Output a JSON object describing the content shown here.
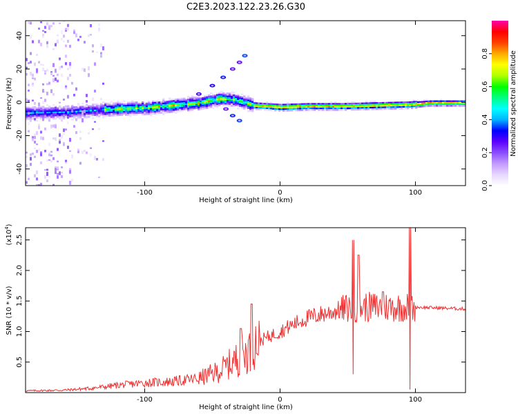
{
  "title": "C2E3.2023.122.23.26.G30",
  "chart_data": [
    {
      "type": "heatmap",
      "xlabel": "Height of straight line (km)",
      "ylabel": "Frequency (Hz)",
      "xlim": [
        -188,
        137
      ],
      "ylim": [
        -50,
        49
      ],
      "x_ticks": [
        -100,
        0,
        100
      ],
      "y_ticks": [
        -40,
        -20,
        0,
        20,
        40
      ],
      "colorbar": {
        "label": "Normalized spectral amplitude",
        "range": [
          0,
          1
        ],
        "ticks": [
          "0.0",
          "0.2",
          "0.4",
          "0.6",
          "0.8"
        ],
        "colors": [
          "#ffffff",
          "#e6d7ff",
          "#c39aff",
          "#8a4dff",
          "#5a00ff",
          "#0000ff",
          "#00b4ff",
          "#00ffff",
          "#00ff80",
          "#00ff00",
          "#b0ff00",
          "#ffff00",
          "#ffaa00",
          "#ff4000",
          "#ff0000",
          "#ff00aa"
        ]
      },
      "ridge": [
        {
          "x": -188,
          "f": -6.0
        },
        {
          "x": -160,
          "f": -5.5
        },
        {
          "x": -140,
          "f": -4.5
        },
        {
          "x": -120,
          "f": -3.5
        },
        {
          "x": -100,
          "f": -3.0
        },
        {
          "x": -80,
          "f": -1.5
        },
        {
          "x": -60,
          "f": 0.0
        },
        {
          "x": -45,
          "f": 2.5
        },
        {
          "x": -35,
          "f": 2.0
        },
        {
          "x": -25,
          "f": 0.0
        },
        {
          "x": -20,
          "f": -1.5
        },
        {
          "x": 0,
          "f": -2.5
        },
        {
          "x": 20,
          "f": -2.0
        },
        {
          "x": 45,
          "f": -2.0
        },
        {
          "x": 70,
          "f": -1.5
        },
        {
          "x": 95,
          "f": -1.0
        },
        {
          "x": 110,
          "f": 0.0
        },
        {
          "x": 137,
          "f": 0.0
        }
      ],
      "upper_branch": [
        {
          "x": -60,
          "f": 5
        },
        {
          "x": -50,
          "f": 10
        },
        {
          "x": -42,
          "f": 15
        },
        {
          "x": -35,
          "f": 20
        },
        {
          "x": -30,
          "f": 24
        },
        {
          "x": -26,
          "f": 28
        }
      ],
      "lower_branch": [
        {
          "x": -40,
          "f": -4
        },
        {
          "x": -35,
          "f": -8
        },
        {
          "x": -30,
          "f": -11
        }
      ]
    },
    {
      "type": "line",
      "xlabel": "Height of straight line (km)",
      "ylabel": "SNR (10 * v/v)",
      "scale_label": "(x10",
      "scale_exp": "4",
      "scale_close": ")",
      "xlim": [
        -188,
        137
      ],
      "ylim": [
        0,
        27000
      ],
      "x_ticks": [
        -100,
        0,
        100
      ],
      "y_ticks": [
        5000,
        10000,
        15000,
        20000,
        25000
      ],
      "y_tick_labels": [
        "0.5",
        "1.0",
        "1.5",
        "2.0",
        "2.5"
      ],
      "line_color": "#ee3030",
      "trend": [
        {
          "x": -188,
          "y": 300
        },
        {
          "x": -160,
          "y": 400
        },
        {
          "x": -140,
          "y": 700
        },
        {
          "x": -120,
          "y": 1200
        },
        {
          "x": -100,
          "y": 1600
        },
        {
          "x": -80,
          "y": 1800
        },
        {
          "x": -60,
          "y": 2300
        },
        {
          "x": -45,
          "y": 3500
        },
        {
          "x": -35,
          "y": 5000
        },
        {
          "x": -25,
          "y": 6500
        },
        {
          "x": -20,
          "y": 8000
        },
        {
          "x": -10,
          "y": 9000
        },
        {
          "x": 0,
          "y": 10000
        },
        {
          "x": 10,
          "y": 11200
        },
        {
          "x": 20,
          "y": 12200
        },
        {
          "x": 30,
          "y": 12800
        },
        {
          "x": 40,
          "y": 13300
        },
        {
          "x": 50,
          "y": 13800
        },
        {
          "x": 60,
          "y": 14000
        },
        {
          "x": 80,
          "y": 14000
        },
        {
          "x": 100,
          "y": 14000
        },
        {
          "x": 137,
          "y": 13700
        }
      ],
      "peaks": [
        {
          "x": -29,
          "y": 10500
        },
        {
          "x": -21,
          "y": 14500
        },
        {
          "x": 54,
          "y": 25000
        },
        {
          "x": 58,
          "y": 22500
        },
        {
          "x": 76,
          "y": 16500
        },
        {
          "x": 96,
          "y": 27000
        }
      ],
      "dips": [
        {
          "x": 54,
          "y": 3000
        },
        {
          "x": 96,
          "y": 500
        }
      ]
    }
  ]
}
